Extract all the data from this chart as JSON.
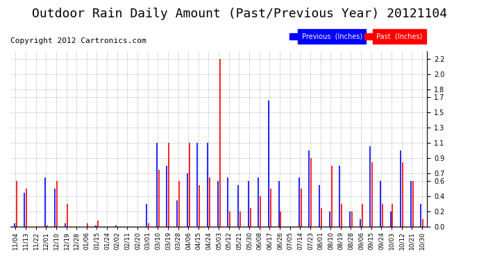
{
  "title": "Outdoor Rain Daily Amount (Past/Previous Year) 20121104",
  "copyright": "Copyright 2012 Cartronics.com",
  "legend": [
    {
      "label": "Previous  (Inches)",
      "color": "#0000ff"
    },
    {
      "label": "Past  (Inches)",
      "color": "#ff0000"
    }
  ],
  "ylim": [
    0.0,
    2.3
  ],
  "yticks": [
    0.0,
    0.2,
    0.4,
    0.6,
    0.7,
    0.9,
    1.1,
    1.3,
    1.5,
    1.7,
    1.8,
    2.0,
    2.2
  ],
  "background_color": "#ffffff",
  "grid_color": "#aaaaaa",
  "title_fontsize": 13,
  "copyright_fontsize": 8,
  "tick_fontsize": 7,
  "x_labels": [
    "11/04",
    "11/13",
    "11/22",
    "12/01",
    "12/10",
    "12/19",
    "12/28",
    "01/06",
    "01/15",
    "01/24",
    "02/02",
    "02/11",
    "02/20",
    "03/01",
    "03/10",
    "03/19",
    "03/28",
    "04/06",
    "04/15",
    "04/24",
    "05/03",
    "05/12",
    "05/21",
    "05/30",
    "06/08",
    "06/17",
    "06/26",
    "07/05",
    "07/14",
    "07/23",
    "08/01",
    "08/10",
    "08/19",
    "08/28",
    "09/06",
    "09/15",
    "09/24",
    "10/03",
    "10/12",
    "10/21",
    "10/30"
  ],
  "blue_data": [
    [
      0,
      0.05
    ],
    [
      1,
      0.45
    ],
    [
      2,
      0.0
    ],
    [
      3,
      0.65
    ],
    [
      4,
      0.5
    ],
    [
      5,
      0.05
    ],
    [
      6,
      0.0
    ],
    [
      7,
      0.0
    ],
    [
      8,
      0.02
    ],
    [
      9,
      0.0
    ],
    [
      10,
      0.02
    ],
    [
      11,
      0.0
    ],
    [
      12,
      0.0
    ],
    [
      13,
      0.3
    ],
    [
      14,
      1.1
    ],
    [
      15,
      0.8
    ],
    [
      16,
      0.35
    ],
    [
      17,
      0.7
    ],
    [
      18,
      1.1
    ],
    [
      19,
      1.1
    ],
    [
      20,
      0.6
    ],
    [
      21,
      0.65
    ],
    [
      22,
      0.55
    ],
    [
      23,
      0.6
    ],
    [
      24,
      0.65
    ],
    [
      25,
      1.65
    ],
    [
      26,
      0.6
    ],
    [
      27,
      0.0
    ],
    [
      28,
      0.65
    ],
    [
      29,
      1.0
    ],
    [
      30,
      0.55
    ],
    [
      31,
      0.2
    ],
    [
      32,
      0.8
    ],
    [
      33,
      0.2
    ],
    [
      34,
      0.1
    ],
    [
      35,
      1.05
    ],
    [
      36,
      0.6
    ],
    [
      37,
      0.2
    ],
    [
      38,
      1.0
    ],
    [
      39,
      0.6
    ],
    [
      40,
      0.3
    ]
  ],
  "red_data": [
    [
      0,
      0.6
    ],
    [
      1,
      0.5
    ],
    [
      2,
      0.0
    ],
    [
      3,
      0.02
    ],
    [
      4,
      0.6
    ],
    [
      5,
      0.3
    ],
    [
      6,
      0.0
    ],
    [
      7,
      0.05
    ],
    [
      8,
      0.08
    ],
    [
      9,
      0.0
    ],
    [
      10,
      0.0
    ],
    [
      11,
      0.0
    ],
    [
      12,
      0.0
    ],
    [
      13,
      0.05
    ],
    [
      14,
      0.75
    ],
    [
      15,
      1.1
    ],
    [
      16,
      0.6
    ],
    [
      17,
      1.1
    ],
    [
      18,
      0.55
    ],
    [
      19,
      0.65
    ],
    [
      20,
      2.2
    ],
    [
      21,
      0.2
    ],
    [
      22,
      0.2
    ],
    [
      23,
      0.25
    ],
    [
      24,
      0.4
    ],
    [
      25,
      0.5
    ],
    [
      26,
      0.2
    ],
    [
      27,
      0.0
    ],
    [
      28,
      0.5
    ],
    [
      29,
      0.9
    ],
    [
      30,
      0.25
    ],
    [
      31,
      0.8
    ],
    [
      32,
      0.3
    ],
    [
      33,
      0.2
    ],
    [
      34,
      0.3
    ],
    [
      35,
      0.85
    ],
    [
      36,
      0.3
    ],
    [
      37,
      0.3
    ],
    [
      38,
      0.85
    ],
    [
      39,
      0.6
    ],
    [
      40,
      0.1
    ]
  ]
}
